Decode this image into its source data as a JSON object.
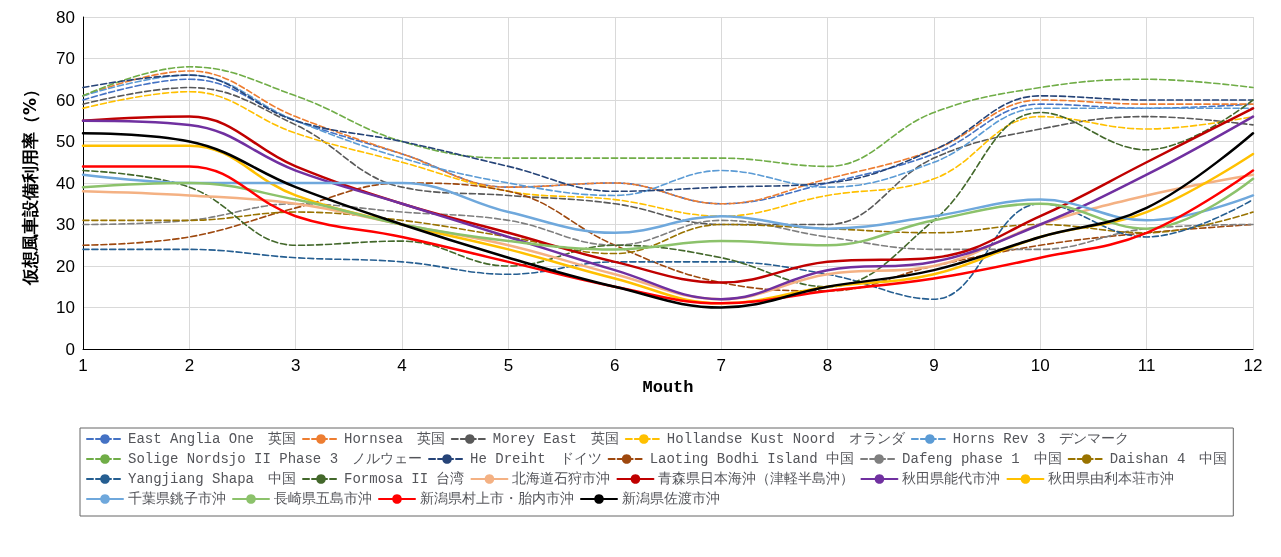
{
  "chart_data": {
    "type": "line",
    "xlabel": "Mouth",
    "ylabel": "仮想風車設備利用率（%）",
    "x": [
      1,
      2,
      3,
      4,
      5,
      6,
      7,
      8,
      9,
      10,
      11,
      12
    ],
    "xlim": [
      1,
      12
    ],
    "xticks": [
      1,
      2,
      3,
      4,
      5,
      6,
      7,
      8,
      9,
      10,
      11,
      12
    ],
    "ylim": [
      0,
      80
    ],
    "yticks": [
      0,
      10,
      20,
      30,
      40,
      50,
      60,
      70,
      80
    ],
    "grid": true,
    "legend": "bottom",
    "marker": "none",
    "series": [
      {
        "name": "East Anglia One　英国",
        "color": "#4472c4",
        "line_style": "dashed",
        "values": [
          60,
          65,
          55,
          47,
          39,
          40,
          35,
          40,
          47,
          59,
          58,
          59
        ]
      },
      {
        "name": "Hornsea　英国",
        "color": "#ed7d31",
        "line_style": "dashed",
        "values": [
          61,
          67,
          56,
          47,
          39,
          40,
          35,
          41,
          48,
          60,
          59,
          59
        ]
      },
      {
        "name": "Morey East　英国",
        "color": "#595959",
        "line_style": "dashed",
        "values": [
          59,
          63,
          54,
          39,
          37,
          35,
          30,
          30,
          46,
          53,
          56,
          54
        ]
      },
      {
        "name": "Hollandse Kust Noord　オランダ",
        "color": "#ffc000",
        "line_style": "dashed",
        "values": [
          58,
          62,
          52,
          45,
          38,
          36,
          32,
          37,
          41,
          56,
          53,
          56
        ]
      },
      {
        "name": "Horns Rev 3　デンマーク",
        "color": "#5b9bd5",
        "line_style": "dashed",
        "values": [
          61,
          66,
          55,
          46,
          40,
          37,
          43,
          39,
          45,
          58,
          58,
          58
        ]
      },
      {
        "name": "Solige Nordsjo II Phase 3　ノルウェー",
        "color": "#70ad47",
        "line_style": "dashed",
        "values": [
          61,
          68,
          61,
          50,
          46,
          46,
          46,
          44,
          57,
          63,
          65,
          63
        ]
      },
      {
        "name": "He Dreiht　ドイツ",
        "color": "#264478",
        "line_style": "dashed",
        "values": [
          63,
          66,
          55,
          50,
          44,
          38,
          39,
          40,
          48,
          61,
          60,
          60
        ]
      },
      {
        "name": "Laoting Bodhi Island 中国",
        "color": "#9e480e",
        "line_style": "dashed",
        "values": [
          25,
          27,
          34,
          40,
          38,
          25,
          16,
          14,
          20,
          25,
          28,
          30
        ]
      },
      {
        "name": "Dafeng phase 1　中国",
        "color": "#7f7f7f",
        "line_style": "dashed",
        "values": [
          30,
          31,
          35,
          33,
          31,
          25,
          31,
          27,
          24,
          24,
          29,
          30
        ]
      },
      {
        "name": "Daishan 4　中国",
        "color": "#997300",
        "line_style": "dashed",
        "values": [
          31,
          31,
          33,
          31,
          27,
          23,
          30,
          29,
          28,
          30,
          28,
          33
        ]
      },
      {
        "name": "Yangjiang Shapa　中国",
        "color": "#255e91",
        "line_style": "dashed",
        "values": [
          24,
          24,
          22,
          21,
          18,
          21,
          21,
          18,
          12,
          35,
          27,
          36
        ]
      },
      {
        "name": "Formosa II 台湾",
        "color": "#43682b",
        "line_style": "dashed",
        "values": [
          43,
          39,
          25,
          26,
          20,
          25,
          22,
          15,
          31,
          57,
          48,
          60
        ]
      },
      {
        "name": "北海道石狩市沖",
        "color": "#f4b183",
        "line_style": "solid",
        "values": [
          38,
          37,
          35,
          30,
          25,
          18,
          12,
          18,
          20,
          30,
          37,
          42
        ]
      },
      {
        "name": "青森県日本海沖（津軽半島沖）",
        "color": "#c00000",
        "line_style": "solid",
        "values": [
          55,
          56,
          44,
          35,
          28,
          21,
          16,
          21,
          22,
          32,
          45,
          58
        ]
      },
      {
        "name": "秋田県能代市沖",
        "color": "#7030a0",
        "line_style": "solid",
        "values": [
          55,
          54,
          43,
          35,
          27,
          19,
          12,
          19,
          21,
          30,
          42,
          56
        ]
      },
      {
        "name": "秋田県由利本荘市沖",
        "color": "#ffc000",
        "line_style": "solid",
        "values": [
          49,
          49,
          37,
          30,
          24,
          17,
          11,
          15,
          18,
          27,
          33,
          47
        ]
      },
      {
        "name": "千葉県銚子市沖",
        "color": "#6fa8dc",
        "line_style": "solid",
        "values": [
          42,
          40,
          40,
          40,
          33,
          28,
          32,
          29,
          32,
          36,
          31,
          37
        ]
      },
      {
        "name": "長崎県五島市沖",
        "color": "#8cc26b",
        "line_style": "solid",
        "values": [
          39,
          40,
          36,
          30,
          26,
          24,
          26,
          25,
          31,
          35,
          29,
          41
        ]
      },
      {
        "name": "新潟県村上市・胎内市沖",
        "color": "#ff0000",
        "line_style": "solid",
        "values": [
          44,
          44,
          32,
          27,
          21,
          15,
          11,
          14,
          17,
          22,
          28,
          43
        ]
      },
      {
        "name": "新潟県佐渡市沖",
        "color": "#000000",
        "line_style": "solid",
        "values": [
          52,
          50,
          39,
          30,
          22,
          15,
          10,
          15,
          19,
          27,
          34,
          52
        ]
      }
    ]
  }
}
